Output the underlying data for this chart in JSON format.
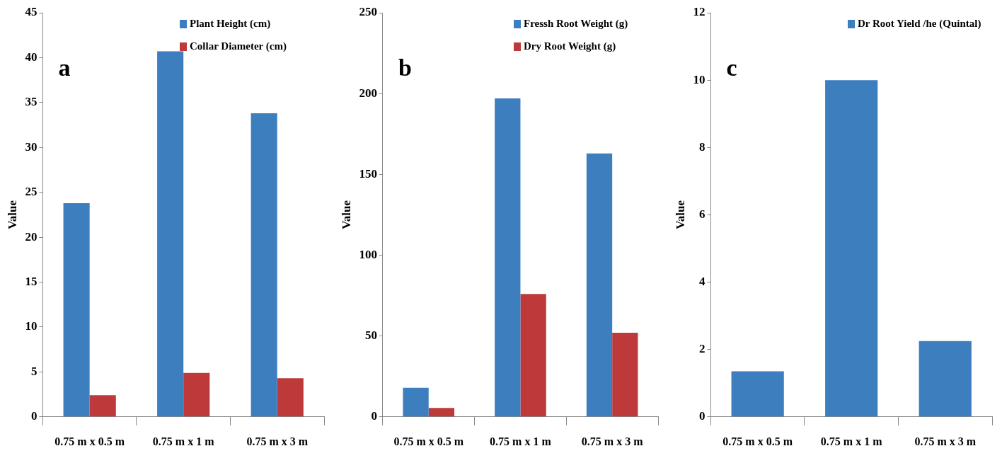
{
  "chart_data": [
    {
      "type": "bar",
      "title": "a",
      "ylabel": "Value",
      "categories": [
        "0.75 m x 0.5 m",
        "0.75 m x 1 m",
        "0.75 m x 3 m"
      ],
      "series": [
        {
          "name": "Plant Height (cm)",
          "color": "#3d7ebf",
          "values": [
            23.8,
            40.7,
            33.8
          ]
        },
        {
          "name": "Collar Diameter (cm)",
          "color": "#be3a3a",
          "values": [
            2.4,
            4.9,
            4.3
          ]
        }
      ],
      "ylim": [
        0,
        45
      ],
      "yticks": [
        0,
        5,
        10,
        15,
        20,
        25,
        30,
        35,
        40,
        45
      ],
      "grid": false,
      "legend": "top right"
    },
    {
      "type": "bar",
      "title": "b",
      "ylabel": "Value",
      "categories": [
        "0.75 m x 0.5 m",
        "0.75 m x 1 m",
        "0.75 m x 3 m"
      ],
      "series": [
        {
          "name": "Fressh Root Weight (g)",
          "color": "#3d7ebf",
          "values": [
            18,
            197,
            163
          ]
        },
        {
          "name": "Dry Root Weight (g)",
          "color": "#be3a3a",
          "values": [
            5.5,
            76,
            52
          ]
        }
      ],
      "ylim": [
        0,
        250
      ],
      "yticks": [
        0,
        50,
        100,
        150,
        200,
        250
      ],
      "grid": false,
      "legend": "top right"
    },
    {
      "type": "bar",
      "title": "c",
      "ylabel": "Value",
      "categories": [
        "0.75 m x 0.5 m",
        "0.75 m x 1 m",
        "0.75 m x 3 m"
      ],
      "series": [
        {
          "name": "Dr Root Yield /he (Quintal)",
          "color": "#3d7ebf",
          "values": [
            1.35,
            10,
            2.25
          ]
        }
      ],
      "ylim": [
        0,
        12
      ],
      "yticks": [
        0,
        2,
        4,
        6,
        8,
        10,
        12
      ],
      "grid": false,
      "legend": "top right"
    }
  ]
}
